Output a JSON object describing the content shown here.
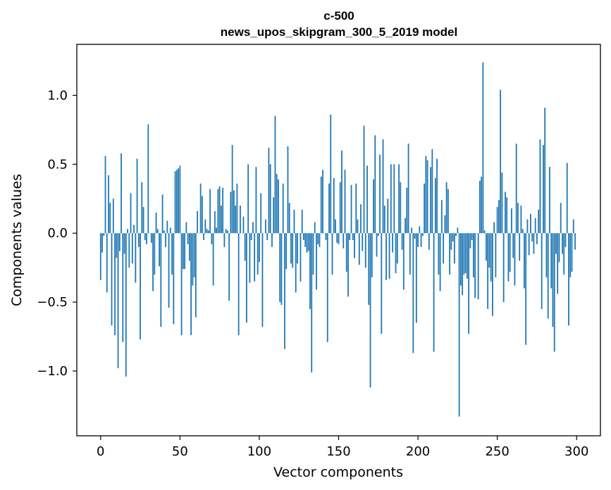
{
  "chart_data": {
    "type": "bar",
    "title": "c-500",
    "subtitle": "news_upos_skipgram_300_5_2019 model",
    "xlabel": "Vector components",
    "ylabel": "Components values",
    "xlim": [
      -15,
      315
    ],
    "ylim": [
      -1.47,
      1.37
    ],
    "xticks": [
      0,
      50,
      100,
      150,
      200,
      250,
      300
    ],
    "yticks": [
      -1.0,
      -0.5,
      0.0,
      0.5,
      1.0
    ],
    "xtick_labels": [
      "0",
      "50",
      "100",
      "150",
      "200",
      "250",
      "300"
    ],
    "ytick_labels": [
      "−1.0",
      "−0.5",
      "0.0",
      "0.5",
      "1.0"
    ],
    "bar_color": "#1f77b4",
    "series": [
      {
        "name": "c-500",
        "values": [
          -0.34,
          -0.14,
          -0.02,
          0.56,
          -0.43,
          0.42,
          0.22,
          -0.67,
          0.25,
          -0.74,
          -0.18,
          -0.98,
          -0.13,
          0.58,
          -0.79,
          -0.15,
          -1.04,
          0.03,
          -0.25,
          0.29,
          -0.22,
          0.06,
          -0.36,
          0.54,
          -0.1,
          -0.77,
          0.37,
          0.19,
          -0.05,
          -0.08,
          0.79,
          0.0,
          -0.07,
          -0.42,
          -0.3,
          0.15,
          0.03,
          -0.24,
          -0.68,
          0.28,
          0.02,
          -0.1,
          0.09,
          -0.54,
          0.04,
          -0.3,
          -0.66,
          0.45,
          0.46,
          0.47,
          0.49,
          -0.74,
          -0.26,
          -0.26,
          0.08,
          -0.08,
          -0.2,
          -0.74,
          -0.38,
          -0.32,
          -0.61,
          0.16,
          0.0,
          0.36,
          0.27,
          -0.05,
          0.1,
          0.03,
          0.02,
          0.32,
          -0.08,
          -0.38,
          0.16,
          0.04,
          0.32,
          0.34,
          0.2,
          0.33,
          -0.1,
          0.03,
          0.02,
          -0.49,
          0.3,
          0.64,
          0.31,
          0.2,
          0.36,
          -0.74,
          0.2,
          0.0,
          0.12,
          -0.2,
          -0.65,
          0.5,
          -0.36,
          -0.05,
          0.08,
          -0.35,
          0.48,
          -0.3,
          -0.21,
          0.29,
          -0.68,
          0.0,
          0.1,
          -0.05,
          0.62,
          0.5,
          -0.1,
          0.26,
          0.85,
          0.43,
          0.39,
          -0.5,
          -0.52,
          0.36,
          -0.84,
          -0.26,
          0.63,
          0.22,
          -0.22,
          -0.25,
          0.17,
          -0.43,
          -0.22,
          0.0,
          -0.35,
          0.17,
          -0.05,
          -0.1,
          -0.14,
          -0.13,
          -0.55,
          -1.01,
          -0.3,
          0.08,
          -0.41,
          -0.08,
          -0.1,
          0.41,
          0.46,
          0.0,
          -0.05,
          -0.79,
          0.36,
          0.86,
          -0.3,
          0.4,
          0.1,
          -0.07,
          -0.08,
          0.37,
          0.6,
          -0.11,
          0.46,
          -0.28,
          -0.46,
          -0.05,
          0.35,
          -0.05,
          -0.18,
          0.36,
          0.1,
          -0.23,
          0.21,
          -0.13,
          0.78,
          -0.25,
          0.49,
          -0.52,
          -1.12,
          -0.32,
          0.39,
          0.71,
          -0.17,
          -0.02,
          0.57,
          -0.73,
          0.68,
          0.2,
          -0.34,
          0.25,
          -0.33,
          0.5,
          -0.14,
          0.5,
          -0.29,
          -0.22,
          0.5,
          0.37,
          -0.12,
          -0.41,
          0.11,
          0.33,
          0.65,
          -0.3,
          0.04,
          -0.87,
          -0.04,
          -0.65,
          -0.1,
          0.05,
          -0.1,
          -0.02,
          0.36,
          0.56,
          0.53,
          -0.12,
          0.48,
          0.61,
          -0.86,
          0.4,
          0.54,
          -0.3,
          -0.42,
          0.24,
          -0.22,
          0.13,
          0.37,
          0.32,
          -0.3,
          -0.12,
          -0.06,
          -0.22,
          -0.02,
          0.04,
          -1.33,
          -0.38,
          -0.45,
          -0.3,
          -0.29,
          -0.33,
          -0.73,
          -0.11,
          -0.05,
          -0.32,
          -0.47,
          0.0,
          -0.48,
          0.38,
          0.41,
          1.24,
          0.02,
          -0.2,
          -0.55,
          -0.25,
          -0.35,
          -0.6,
          0.08,
          -0.32,
          0.19,
          0.24,
          1.04,
          0.44,
          -0.5,
          0.3,
          0.26,
          -0.35,
          -0.28,
          0.18,
          -0.18,
          -0.38,
          0.65,
          0.22,
          -0.2,
          0.2,
          0.03,
          -0.4,
          -0.81,
          0.1,
          -0.16,
          0.14,
          -0.06,
          -0.15,
          0.11,
          -0.08,
          0.17,
          0.68,
          -0.55,
          0.64,
          0.91,
          -0.32,
          -0.62,
          0.48,
          -0.4,
          -0.68,
          -0.86,
          -0.15,
          -0.44,
          -0.21,
          0.22,
          -0.15,
          -0.3,
          -0.1,
          0.51,
          -0.67,
          -0.32,
          -0.28,
          0.1,
          -0.12
        ]
      }
    ]
  }
}
